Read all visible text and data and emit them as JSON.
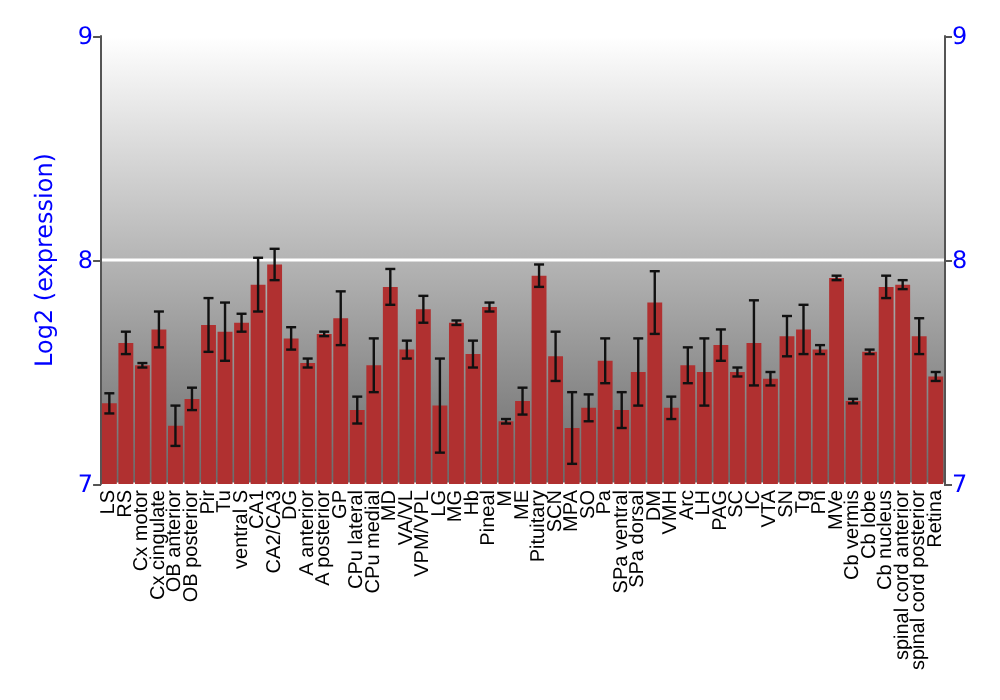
{
  "chart_data": {
    "type": "bar",
    "ylabel": "Log2 (expression)",
    "categories": [
      "LS",
      "RS",
      "Cx motor",
      "Cx cingulate",
      "OB anterior",
      "OB posterior",
      "Pir",
      "Tu",
      "ventral S",
      "CA1",
      "CA2/CA3",
      "DG",
      "A anterior",
      "A posterior",
      "GP",
      "CPu lateral",
      "CPu medial",
      "MD",
      "VA/VL",
      "VPM/VPL",
      "LG",
      "MG",
      "Hb",
      "Pineal",
      "M",
      "ME",
      "Pituitary",
      "SCN",
      "MPA",
      "SO",
      "Pa",
      "SPa ventral",
      "SPa dorsal",
      "DM",
      "VMH",
      "Arc",
      "LH",
      "PAG",
      "SC",
      "IC",
      "VTA",
      "SN",
      "Tg",
      "Pn",
      "MVe",
      "Cb vermis",
      "Cb lobe",
      "Cb nucleus",
      "spinal cord anterior",
      "spinal cord posterior",
      "Retina"
    ],
    "color": "#b03030",
    "values": [
      7.36,
      7.63,
      7.53,
      7.69,
      7.26,
      7.38,
      7.71,
      7.68,
      7.72,
      7.89,
      7.98,
      7.65,
      7.54,
      7.67,
      7.74,
      7.33,
      7.53,
      7.88,
      7.6,
      7.78,
      7.35,
      7.72,
      7.58,
      7.79,
      7.28,
      7.37,
      7.93,
      7.57,
      7.25,
      7.34,
      7.55,
      7.33,
      7.5,
      7.81,
      7.34,
      7.53,
      7.5,
      7.62,
      7.5,
      7.63,
      7.47,
      7.66,
      7.69,
      7.6,
      7.92,
      7.37,
      7.59,
      7.88,
      7.89,
      7.66,
      7.48
    ],
    "errors": [
      0.045,
      0.05,
      0.01,
      0.08,
      0.09,
      0.05,
      0.12,
      0.13,
      0.04,
      0.12,
      0.07,
      0.05,
      0.02,
      0.01,
      0.12,
      0.06,
      0.12,
      0.08,
      0.04,
      0.06,
      0.21,
      0.01,
      0.06,
      0.02,
      0.01,
      0.06,
      0.05,
      0.11,
      0.16,
      0.06,
      0.1,
      0.08,
      0.15,
      0.14,
      0.05,
      0.08,
      0.15,
      0.07,
      0.02,
      0.19,
      0.03,
      0.09,
      0.11,
      0.02,
      0.01,
      0.01,
      0.01,
      0.05,
      0.02,
      0.08,
      0.02
    ],
    "ylim": [
      7,
      9
    ],
    "yticks": [
      7,
      8,
      9
    ],
    "y2lim": [
      7,
      9
    ],
    "y2ticks": [
      7,
      8,
      9
    ],
    "grid": "y"
  }
}
